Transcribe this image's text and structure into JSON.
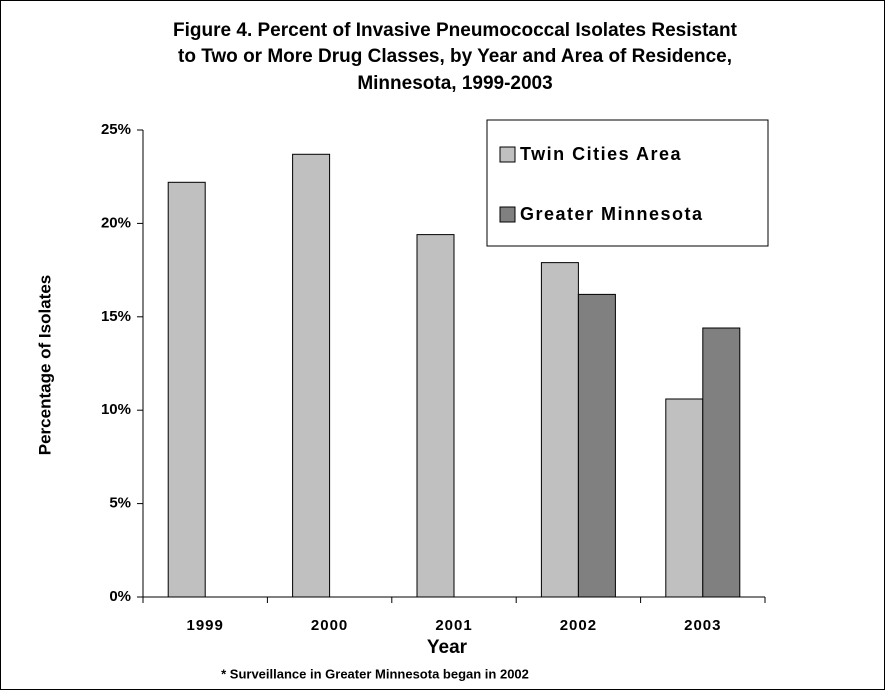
{
  "chart_data": {
    "type": "bar",
    "title": [
      "Figure 4.  Percent of Invasive Pneumococcal  Isolates Resistant",
      "to Two or More Drug Classes, by Year and Area of Residence,",
      "Minnesota, 1999-2003"
    ],
    "categories": [
      "1999",
      "2000",
      "2001",
      "2002",
      "2003"
    ],
    "series": [
      {
        "name": "Twin Cities Area",
        "color": "#c0c0c0",
        "values": [
          22.2,
          23.7,
          19.4,
          17.9,
          10.6
        ]
      },
      {
        "name": "Greater Minnesota",
        "color": "#808080",
        "values": [
          null,
          null,
          null,
          16.2,
          14.4
        ]
      }
    ],
    "ylim": [
      0,
      25
    ],
    "yticks": [
      {
        "value": 0,
        "label": "0%"
      },
      {
        "value": 5,
        "label": "5%"
      },
      {
        "value": 10,
        "label": "10%"
      },
      {
        "value": 15,
        "label": "15%"
      },
      {
        "value": 20,
        "label": "20%"
      },
      {
        "value": 25,
        "label": "25%"
      }
    ],
    "xlabel": "Year",
    "ylabel": "Percentage of Isolates",
    "footnote": "* Surveillance in Greater Minnesota began in 2002",
    "legend": "upper right"
  }
}
